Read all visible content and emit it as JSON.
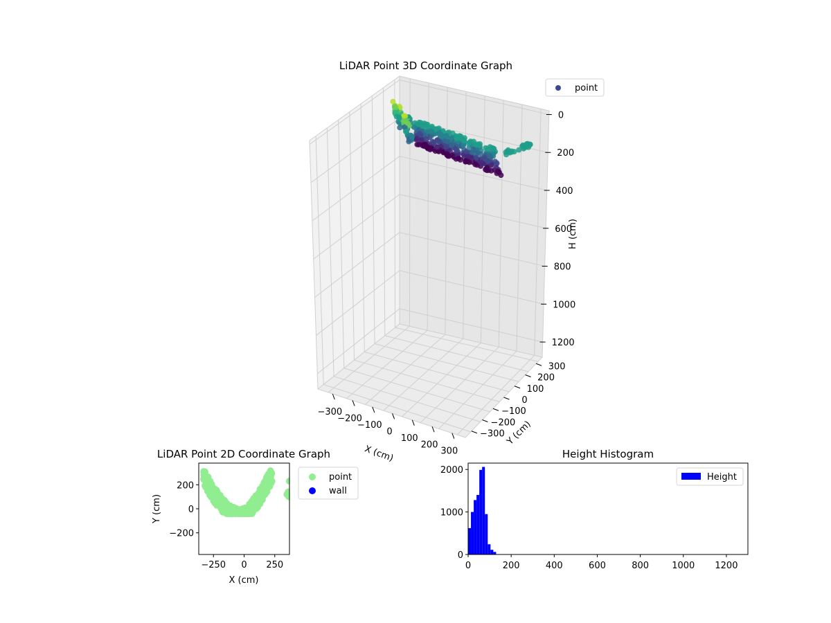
{
  "chart_data": [
    {
      "type": "scatter",
      "title": "LiDAR Point 3D Coordinate Graph",
      "xlabel": "X (cm)",
      "ylabel": "Y (cm)",
      "zlabel": "H (cm)",
      "xticks": [
        "−300",
        "−200",
        "−100",
        "0",
        "100",
        "200",
        "300"
      ],
      "yticks": [
        "−300",
        "−200",
        "−100",
        "0",
        "100",
        "200",
        "300"
      ],
      "zticks": [
        "0",
        "200",
        "400",
        "600",
        "800",
        "1000",
        "1200"
      ],
      "zlim": [
        1300,
        0
      ],
      "legend": [
        {
          "name": "point",
          "color": "#3b4a8a"
        }
      ],
      "legend_position": "top-right",
      "colormap": "viridis",
      "grid": true
    },
    {
      "type": "scatter",
      "title": "LiDAR Point 2D Coordinate Graph",
      "xlabel": "X (cm)",
      "ylabel": "Y (cm)",
      "xticks": [
        -250,
        0,
        250
      ],
      "yticks": [
        -200,
        0,
        200
      ],
      "xlim": [
        -370,
        370
      ],
      "ylim": [
        -380,
        380
      ],
      "series": [
        {
          "name": "point",
          "color": "#90ee90"
        },
        {
          "name": "wall",
          "color": "#0000ff"
        }
      ],
      "legend_position": "outside-right"
    },
    {
      "type": "bar",
      "title": "Height Histogram",
      "series_name": "Height",
      "color": "#0000ff",
      "bins": [
        {
          "x0": 0,
          "x1": 13,
          "value": 620
        },
        {
          "x0": 13,
          "x1": 26,
          "value": 1000
        },
        {
          "x0": 26,
          "x1": 39,
          "value": 1280
        },
        {
          "x0": 39,
          "x1": 52,
          "value": 1400
        },
        {
          "x0": 52,
          "x1": 65,
          "value": 1990
        },
        {
          "x0": 65,
          "x1": 78,
          "value": 2060
        },
        {
          "x0": 78,
          "x1": 91,
          "value": 950
        },
        {
          "x0": 91,
          "x1": 104,
          "value": 240
        },
        {
          "x0": 104,
          "x1": 117,
          "value": 110
        },
        {
          "x0": 117,
          "x1": 130,
          "value": 60
        }
      ],
      "xticks": [
        0,
        200,
        400,
        600,
        800,
        1000,
        1200
      ],
      "yticks": [
        0,
        1000,
        2000
      ],
      "xlim": [
        0,
        1300
      ],
      "ylim": [
        0,
        2150
      ],
      "legend": [
        "Height"
      ],
      "legend_position": "top-right"
    }
  ]
}
